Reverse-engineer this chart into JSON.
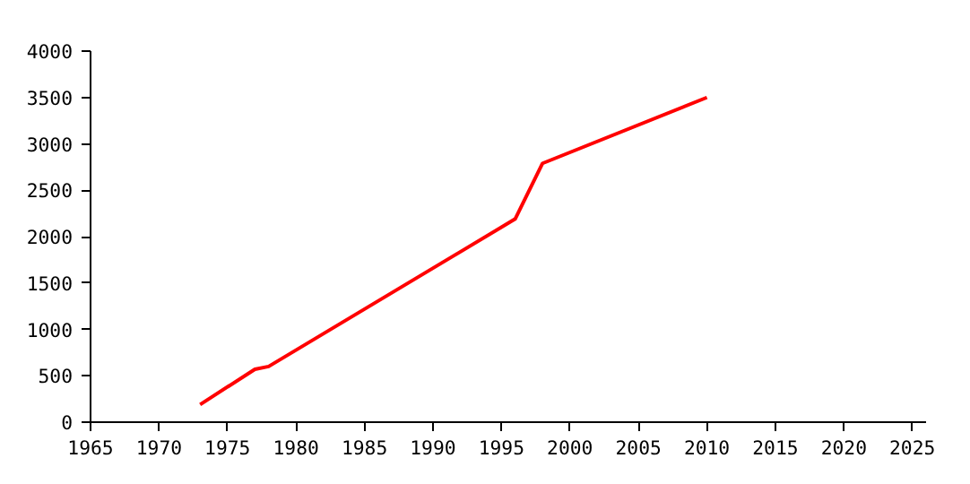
{
  "chart_data": {
    "type": "line",
    "x": [
      1973,
      1977,
      1978,
      1996,
      1998,
      2010
    ],
    "series": [
      {
        "color": "#ff0000",
        "values": [
          190,
          570,
          600,
          2190,
          2790,
          3500
        ]
      }
    ],
    "xlim": [
      1965,
      2026
    ],
    "xticks": [
      1965,
      1970,
      1975,
      1980,
      1985,
      1990,
      1995,
      2000,
      2005,
      2010,
      2015,
      2020,
      2025
    ],
    "ylim": [
      0,
      4000
    ],
    "yticks": [
      0,
      500,
      1000,
      1500,
      2000,
      2500,
      3000,
      3500,
      4000
    ],
    "grid": false
  }
}
